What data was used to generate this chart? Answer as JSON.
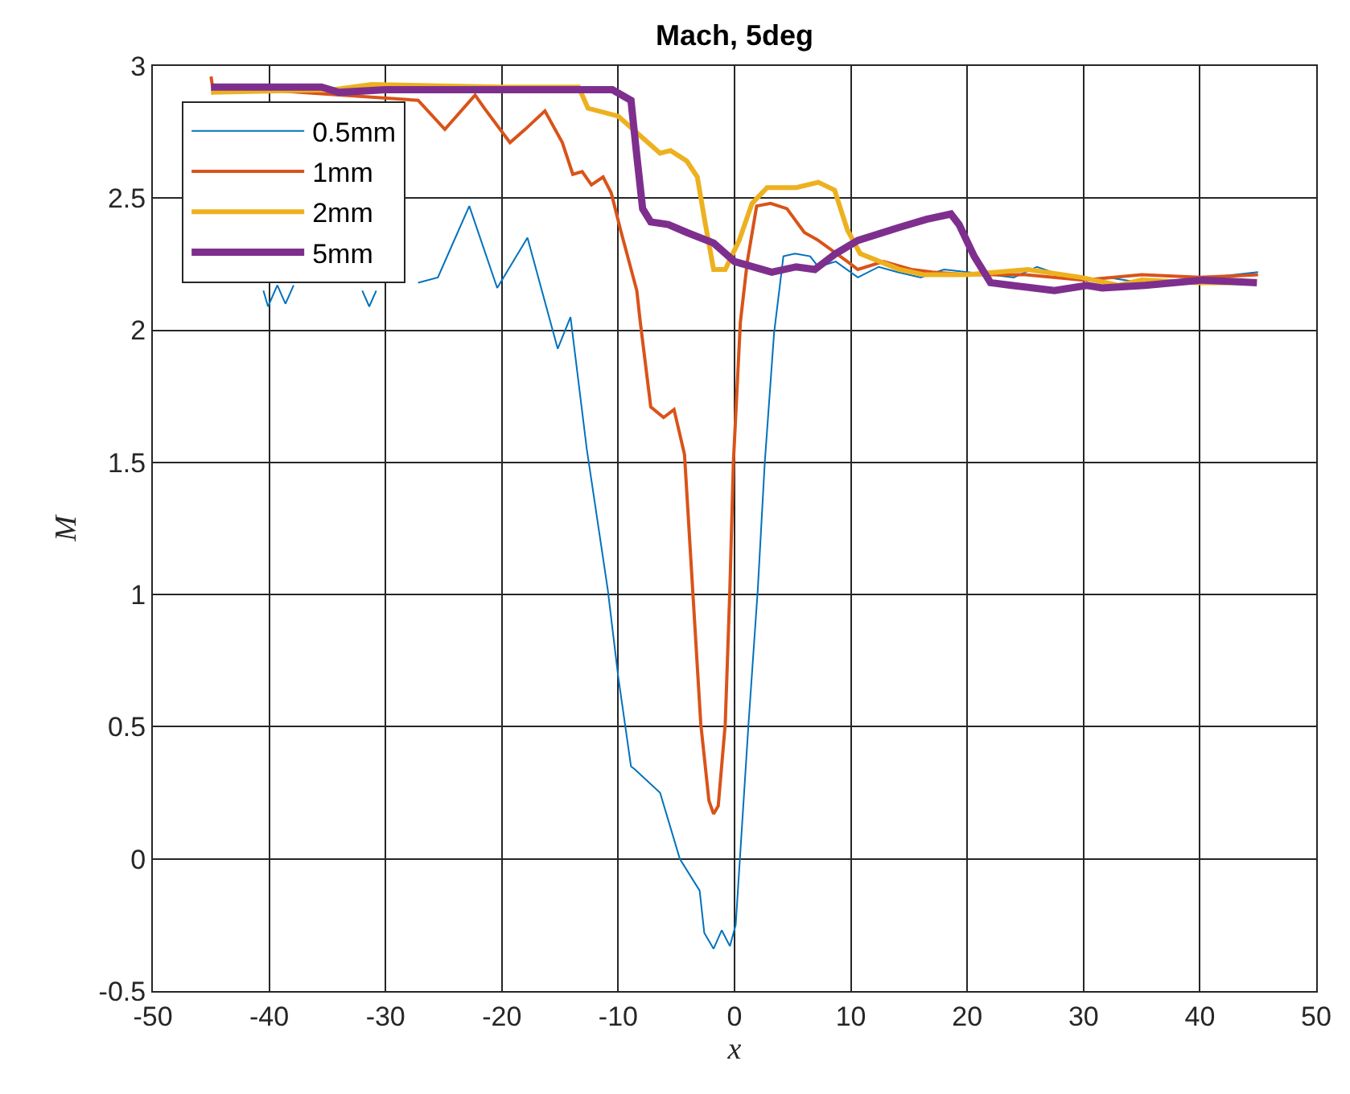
{
  "chart_data": {
    "type": "line",
    "title": "Mach, 5deg",
    "xlabel": "x",
    "ylabel": "M",
    "xlim": [
      -50,
      50
    ],
    "xticks": [
      -50,
      -40,
      -30,
      -20,
      -10,
      0,
      10,
      20,
      30,
      40,
      50
    ],
    "ylim": [
      -0.5,
      3
    ],
    "yticks": [
      -0.5,
      0,
      0.5,
      1,
      1.5,
      2,
      2.5,
      3
    ],
    "grid": true,
    "legend": "top left",
    "marker": "none",
    "line_style": "solid",
    "series": [
      {
        "name": "0.5mm",
        "color": "#0072bd",
        "x": [
          -40.5,
          -40.1,
          -39.3,
          -38.6,
          -37.9,
          -35,
          -32,
          -31.4,
          -30.8,
          -29,
          -27.2,
          -25.5,
          -24.5,
          -22.8,
          -20.4,
          -17.8,
          -15.2,
          -14.1,
          -12.7,
          -10.9,
          -10,
          -8.9,
          -8.6,
          -6.4,
          -4.7,
          -3,
          -2.6,
          -1.8,
          -1.1,
          -0.4,
          0.1,
          1.2,
          2,
          2.6,
          3.4,
          4.2,
          5.2,
          6.5,
          7.2,
          8.7,
          10.6,
          12.4,
          14,
          16,
          18,
          20,
          22,
          24,
          26,
          28,
          30,
          32,
          35,
          38,
          41,
          43,
          45
        ],
        "values": [
          2.15,
          2.09,
          2.17,
          2.1,
          2.17,
          null,
          2.15,
          2.09,
          2.15,
          null,
          2.18,
          2.2,
          2.3,
          2.47,
          2.16,
          2.35,
          1.93,
          2.05,
          1.55,
          1.02,
          0.69,
          0.35,
          0.34,
          0.25,
          0.0,
          -0.12,
          -0.28,
          -0.34,
          -0.27,
          -0.33,
          -0.25,
          0.51,
          1.02,
          1.5,
          1.99,
          2.28,
          2.29,
          2.28,
          2.24,
          2.26,
          2.2,
          2.24,
          2.22,
          2.2,
          2.23,
          2.22,
          2.21,
          2.2,
          2.24,
          2.21,
          2.19,
          2.2,
          2.18,
          2.19,
          2.2,
          2.21,
          2.22
        ]
      },
      {
        "name": "1mm",
        "color": "#d95319",
        "x": [
          -45,
          -44.8,
          -44,
          -27.2,
          -24.9,
          -22.3,
          -21.5,
          -19.3,
          -18,
          -16.3,
          -14.8,
          -13.9,
          -13.1,
          -12.3,
          -11.3,
          -10.6,
          -9.8,
          -8.4,
          -8.1,
          -7.2,
          -6.1,
          -5.2,
          -4.3,
          -3.6,
          -2.9,
          -2.2,
          -1.8,
          -1.4,
          -0.8,
          -0.4,
          -0.1,
          0.5,
          1.1,
          1.9,
          3.1,
          4.5,
          6,
          7.2,
          9.7,
          10.6,
          12.8,
          15.2,
          17,
          20,
          25,
          30,
          35,
          40,
          45
        ],
        "values": [
          2.96,
          2.9,
          2.92,
          2.87,
          2.76,
          2.89,
          2.84,
          2.71,
          2.76,
          2.83,
          2.71,
          2.59,
          2.6,
          2.55,
          2.58,
          2.52,
          2.38,
          2.15,
          2.03,
          1.71,
          1.67,
          1.7,
          1.53,
          1.02,
          0.51,
          0.22,
          0.17,
          0.2,
          0.51,
          1.02,
          1.5,
          2.03,
          2.26,
          2.47,
          2.48,
          2.46,
          2.37,
          2.34,
          2.26,
          2.23,
          2.26,
          2.23,
          2.22,
          2.21,
          2.21,
          2.19,
          2.21,
          2.2,
          2.21
        ]
      },
      {
        "name": "2mm",
        "color": "#edb120",
        "x": [
          -45,
          -34.5,
          -31.2,
          -20,
          -13.4,
          -12.6,
          -10,
          -8.2,
          -6.4,
          -5.5,
          -4.1,
          -3.2,
          -2.5,
          -1.8,
          -0.8,
          0.4,
          1.5,
          2.8,
          5.3,
          7.2,
          8.6,
          9.7,
          10.8,
          14.2,
          16.3,
          20,
          25.2,
          29.8,
          33,
          35,
          40,
          44.9
        ],
        "values": [
          2.9,
          2.91,
          2.93,
          2.92,
          2.92,
          2.84,
          2.81,
          2.74,
          2.67,
          2.68,
          2.64,
          2.58,
          2.4,
          2.23,
          2.23,
          2.34,
          2.48,
          2.54,
          2.54,
          2.56,
          2.53,
          2.38,
          2.29,
          2.23,
          2.21,
          2.21,
          2.23,
          2.2,
          2.17,
          2.19,
          2.18,
          2.18
        ]
      },
      {
        "name": "5mm",
        "color": "#7e2f8e",
        "x": [
          -45,
          -35.5,
          -34,
          -30,
          -20,
          -10.5,
          -8.9,
          -8.4,
          -7.9,
          -7.2,
          -5.7,
          -4.1,
          -1.8,
          0,
          3.2,
          5.3,
          6.9,
          8.7,
          10.6,
          14.2,
          16.5,
          18.6,
          19.3,
          20.6,
          22,
          23.8,
          27.5,
          30.3,
          31.6,
          35.3,
          40.3,
          44.9
        ],
        "values": [
          2.92,
          2.92,
          2.9,
          2.91,
          2.91,
          2.91,
          2.87,
          2.66,
          2.46,
          2.41,
          2.4,
          2.37,
          2.33,
          2.26,
          2.22,
          2.24,
          2.23,
          2.29,
          2.34,
          2.39,
          2.42,
          2.44,
          2.4,
          2.28,
          2.18,
          2.17,
          2.15,
          2.17,
          2.16,
          2.17,
          2.19,
          2.18
        ]
      }
    ]
  }
}
